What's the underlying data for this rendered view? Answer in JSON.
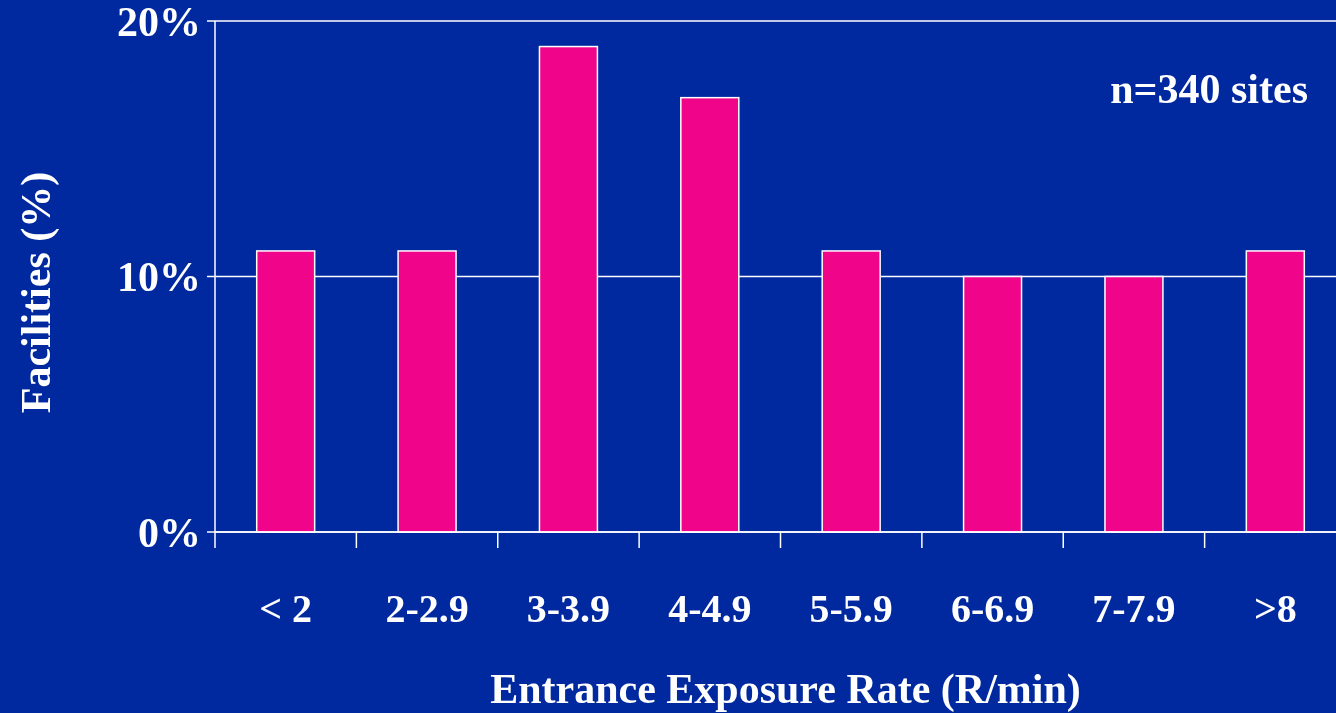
{
  "chart_data": {
    "type": "bar",
    "xlabel": "Entrance Exposure Rate (R/min)",
    "ylabel": "Facilities (%)",
    "categories": [
      "< 2",
      "2-2.9",
      "3-3.9",
      "4-4.9",
      "5-5.9",
      "6-6.9",
      "7-7.9",
      ">8"
    ],
    "values": [
      11,
      11,
      19,
      17,
      11,
      10,
      10,
      11
    ],
    "color": "#f0058a",
    "ylim": [
      0,
      20
    ],
    "yticks": [
      {
        "value": 0,
        "label": "0%"
      },
      {
        "value": 10,
        "label": "10%"
      },
      {
        "value": 20,
        "label": "20%"
      }
    ],
    "grid": "y",
    "annotations": [
      "n=340 sites"
    ]
  }
}
